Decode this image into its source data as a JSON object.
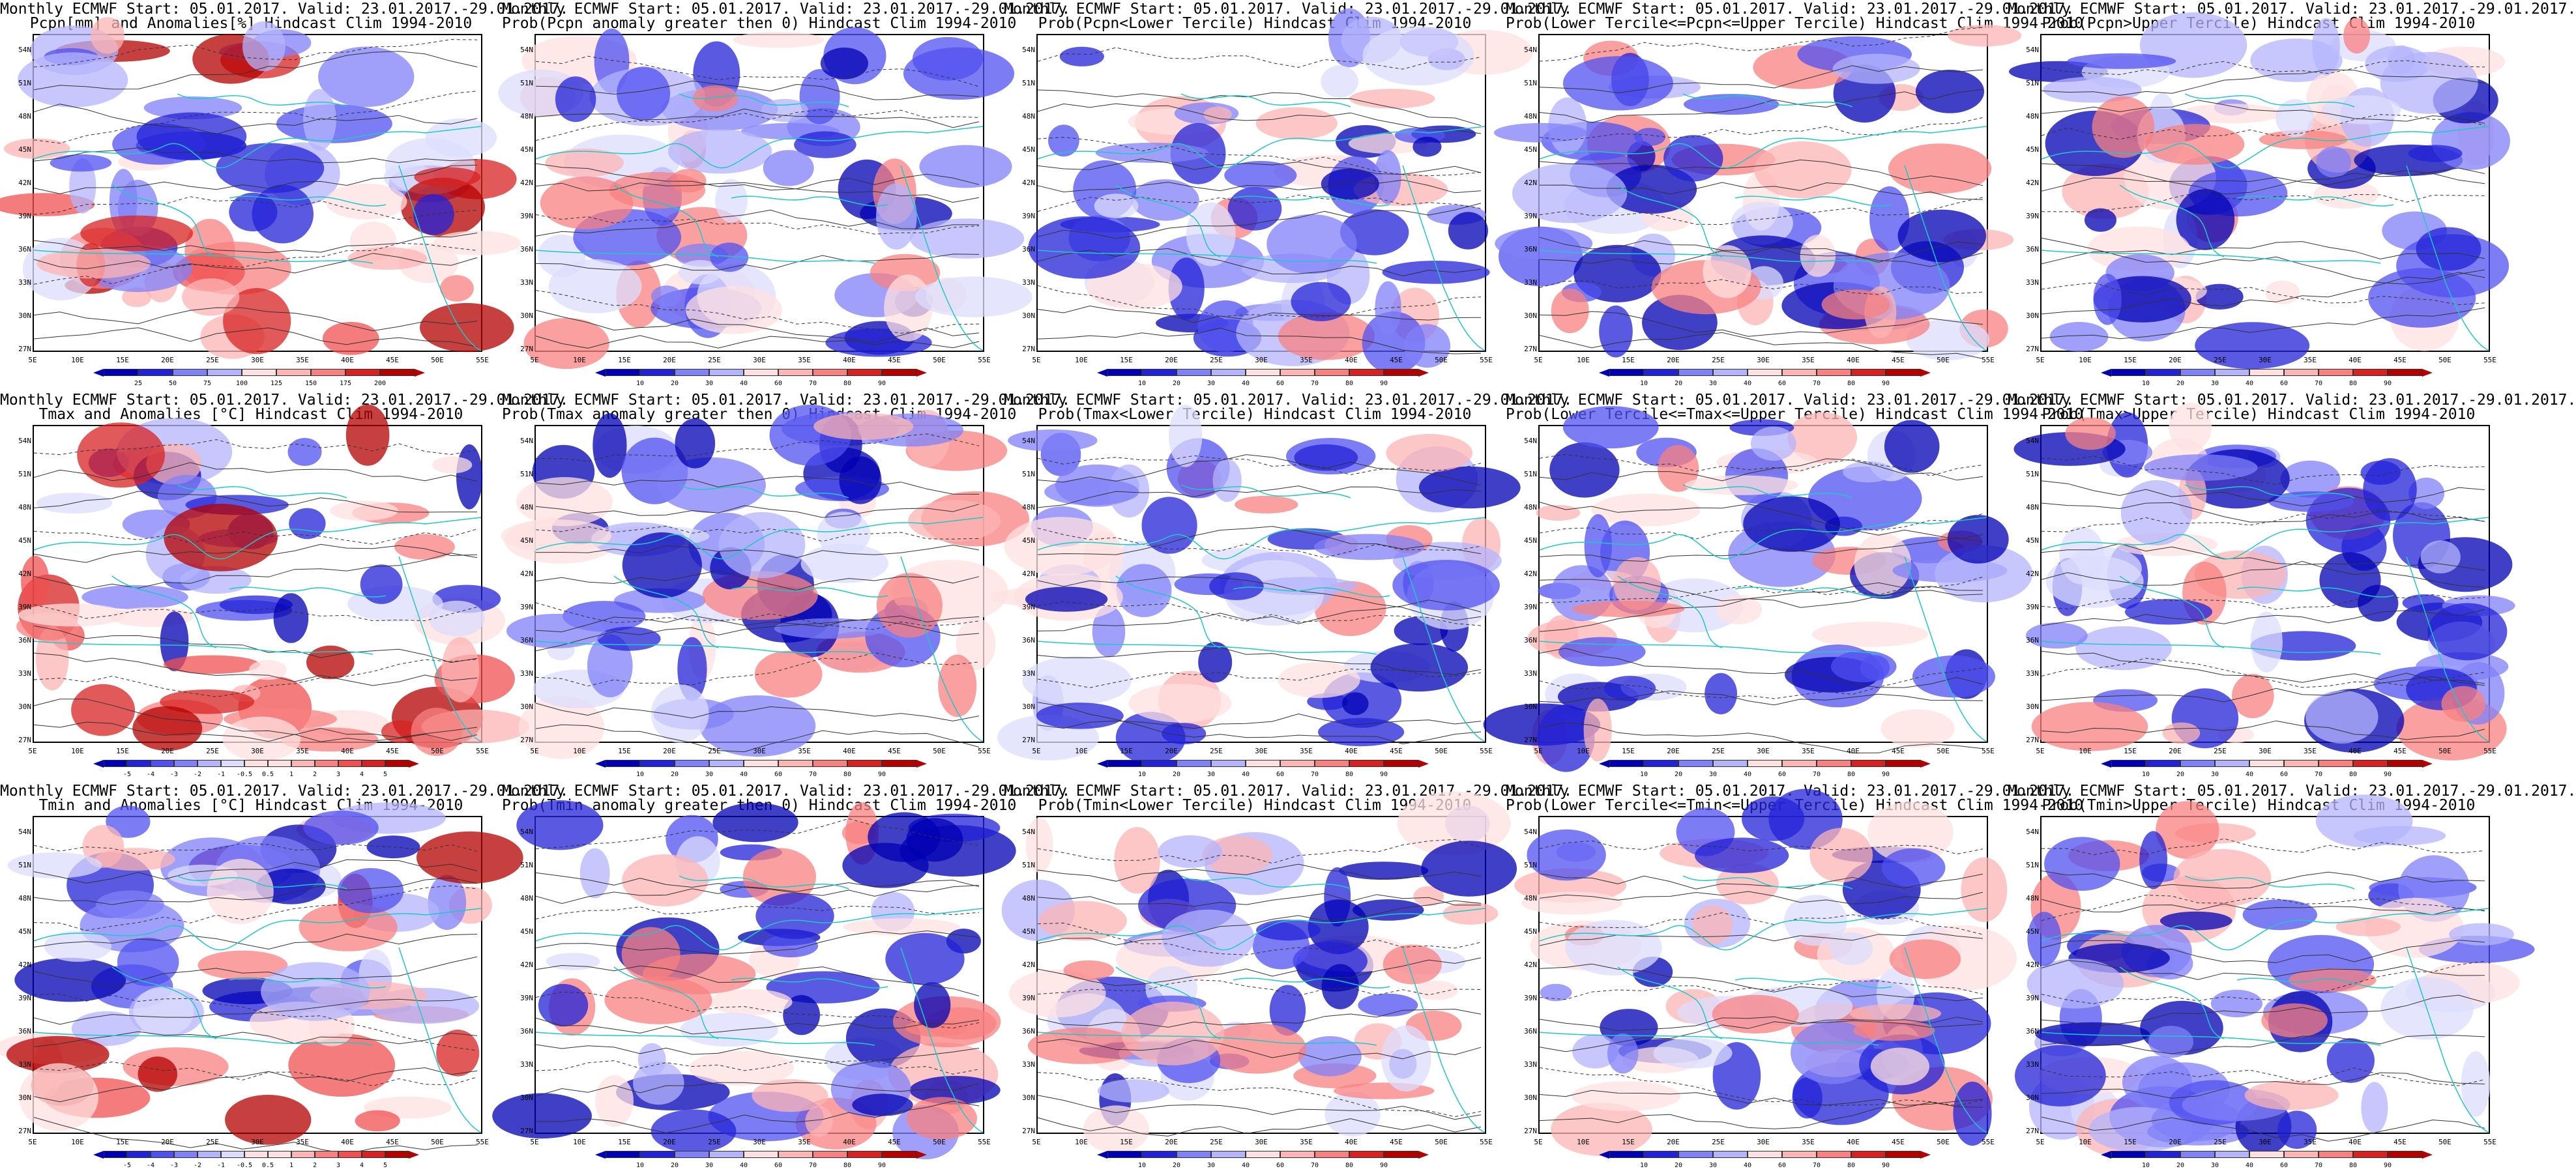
{
  "panels": [
    {
      "line1": "Monthly ECMWF Start: 05.01.2017. Valid: 23.01.2017.-29.01.2017.",
      "line2": "Pcpn[mm] and Anomalies[%] Hindcast Clim 1994-2010",
      "scheme": "anom",
      "ticks": [
        "25",
        "50",
        "75",
        "100",
        "125",
        "150",
        "175",
        "200"
      ]
    },
    {
      "line1": "Monthly ECMWF Start: 05.01.2017. Valid: 23.01.2017.-29.01.2017.",
      "line2": "Prob(Pcpn anomaly greater then 0) Hindcast Clim 1994-2010",
      "scheme": "prob",
      "ticks": [
        "10",
        "20",
        "30",
        "40",
        "60",
        "70",
        "80",
        "90"
      ]
    },
    {
      "line1": "Monthly ECMWF Start: 05.01.2017. Valid: 23.01.2017.-29.01.2017.",
      "line2": "Prob(Pcpn<Lower Tercile) Hindcast Clim 1994-2010",
      "scheme": "prob",
      "ticks": [
        "10",
        "20",
        "30",
        "40",
        "60",
        "70",
        "80",
        "90"
      ]
    },
    {
      "line1": "Monthly ECMWF Start: 05.01.2017. Valid: 23.01.2017.-29.01.2017.",
      "line2": "Prob(Lower Tercile<=Pcpn<=Upper Tercile) Hindcast Clim 1994-2010",
      "scheme": "prob",
      "ticks": [
        "10",
        "20",
        "30",
        "40",
        "60",
        "70",
        "80",
        "90"
      ]
    },
    {
      "line1": "Monthly ECMWF Start: 05.01.2017. Valid: 23.01.2017.-29.01.2017.",
      "line2": "Prob(Pcpn>Upper Tercile) Hindcast Clim 1994-2010",
      "scheme": "prob",
      "ticks": [
        "10",
        "20",
        "30",
        "40",
        "60",
        "70",
        "80",
        "90"
      ]
    },
    {
      "line1": "Monthly ECMWF Start: 05.01.2017. Valid: 23.01.2017.-29.01.2017.",
      "line2": "Tmax and Anomalies [°C] Hindcast Clim 1994-2010",
      "scheme": "anom",
      "ticks": [
        "-5",
        "-4",
        "-3",
        "-2",
        "-1",
        "-0.5",
        "0.5",
        "1",
        "2",
        "3",
        "4",
        "5"
      ]
    },
    {
      "line1": "Monthly ECMWF Start: 05.01.2017. Valid: 23.01.2017.-29.01.2017.",
      "line2": "Prob(Tmax anomaly greater then 0) Hindcast Clim 1994-2010",
      "scheme": "prob",
      "ticks": [
        "10",
        "20",
        "30",
        "40",
        "60",
        "70",
        "80",
        "90"
      ]
    },
    {
      "line1": "Monthly ECMWF Start: 05.01.2017. Valid: 23.01.2017.-29.01.2017.",
      "line2": "Prob(Tmax<Lower Tercile) Hindcast Clim 1994-2010",
      "scheme": "prob",
      "ticks": [
        "10",
        "20",
        "30",
        "40",
        "60",
        "70",
        "80",
        "90"
      ]
    },
    {
      "line1": "Monthly ECMWF Start: 05.01.2017. Valid: 23.01.2017.-29.01.2017.",
      "line2": "Prob(Lower Tercile<=Tmax<=Upper Tercile) Hindcast Clim 1994-2010",
      "scheme": "prob",
      "ticks": [
        "10",
        "20",
        "30",
        "40",
        "60",
        "70",
        "80",
        "90"
      ]
    },
    {
      "line1": "Monthly ECMWF Start: 05.01.2017. Valid: 23.01.2017.-29.01.2017.",
      "line2": "Prob(Tmax>Upper Tercile) Hindcast Clim 1994-2010",
      "scheme": "prob",
      "ticks": [
        "10",
        "20",
        "30",
        "40",
        "60",
        "70",
        "80",
        "90"
      ]
    },
    {
      "line1": "Monthly ECMWF Start: 05.01.2017. Valid: 23.01.2017.-29.01.2017.",
      "line2": "Tmin and Anomalies [°C] Hindcast Clim 1994-2010",
      "scheme": "anom",
      "ticks": [
        "-5",
        "-4",
        "-3",
        "-2",
        "-1",
        "-0.5",
        "0.5",
        "1",
        "2",
        "3",
        "4",
        "5"
      ]
    },
    {
      "line1": "Monthly ECMWF Start: 05.01.2017. Valid: 23.01.2017.-29.01.2017.",
      "line2": "Prob(Tmin anomaly greater then 0) Hindcast Clim 1994-2010",
      "scheme": "prob",
      "ticks": [
        "10",
        "20",
        "30",
        "40",
        "60",
        "70",
        "80",
        "90"
      ]
    },
    {
      "line1": "Monthly ECMWF Start: 05.01.2017. Valid: 23.01.2017.-29.01.2017.",
      "line2": "Prob(Tmin<Lower Tercile) Hindcast Clim 1994-2010",
      "scheme": "prob",
      "ticks": [
        "10",
        "20",
        "30",
        "40",
        "60",
        "70",
        "80",
        "90"
      ]
    },
    {
      "line1": "Monthly ECMWF Start: 05.01.2017. Valid: 23.01.2017.-29.01.2017.",
      "line2": "Prob(Lower Tercile<=Tmin<=Upper Tercile) Hindcast Clim 1994-2010",
      "scheme": "prob",
      "ticks": [
        "10",
        "20",
        "30",
        "40",
        "60",
        "70",
        "80",
        "90"
      ]
    },
    {
      "line1": "Monthly ECMWF Start: 05.01.2017. Valid: 23.01.2017.-29.01.2017.",
      "line2": "Prob(Tmin>Upper Tercile) Hindcast Clim 1994-2010",
      "scheme": "prob",
      "ticks": [
        "10",
        "20",
        "30",
        "40",
        "60",
        "70",
        "80",
        "90"
      ]
    }
  ],
  "lat_labels": [
    "54N",
    "51N",
    "48N",
    "45N",
    "42N",
    "39N",
    "36N",
    "33N",
    "30N",
    "27N"
  ],
  "lon_labels": [
    "5E",
    "10E",
    "15E",
    "20E",
    "25E",
    "30E",
    "35E",
    "40E",
    "45E",
    "50E",
    "55E"
  ],
  "colors": {
    "coast": "#1fc8c8",
    "contour": "#333333",
    "blues": [
      "#0000b4",
      "#2222d8",
      "#5050f0",
      "#8080f8",
      "#b4b4fc",
      "#dcdcfe"
    ],
    "reds": [
      "#ffe0e0",
      "#fcb4b4",
      "#f88080",
      "#f05050",
      "#d82222",
      "#b40000"
    ]
  }
}
